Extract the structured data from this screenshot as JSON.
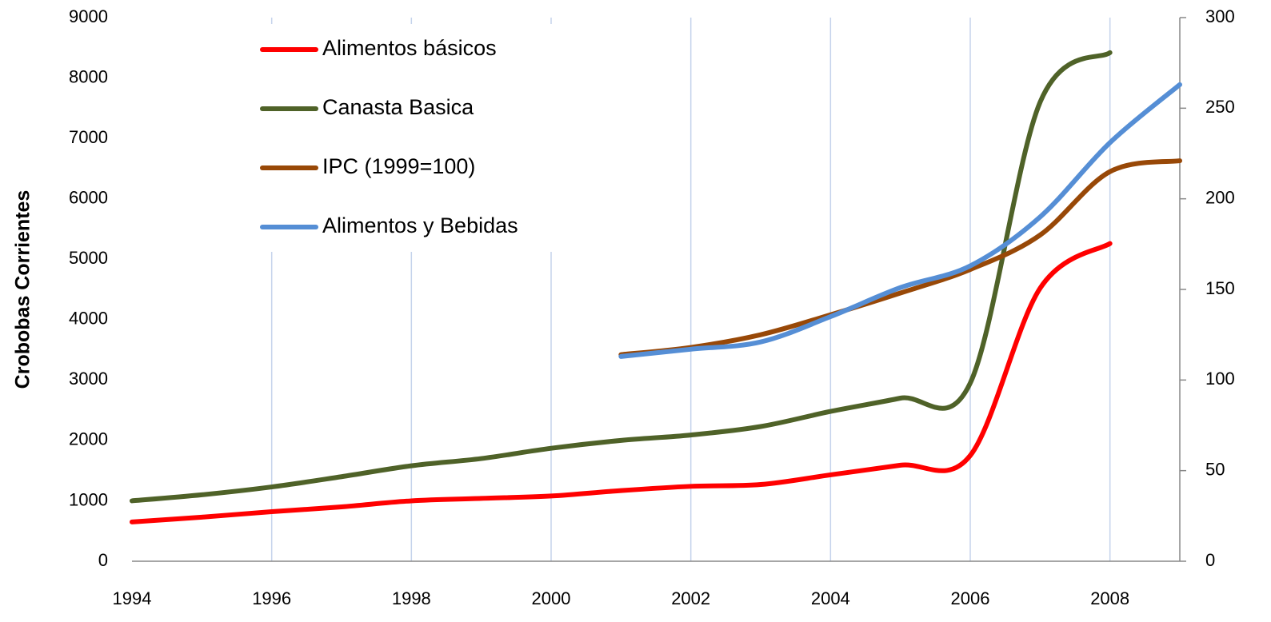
{
  "chart_data": {
    "type": "line",
    "y_label": "Crobobas Corrientes",
    "x": [
      1994,
      1995,
      1996,
      1997,
      1998,
      1999,
      2000,
      2001,
      2002,
      2003,
      2004,
      2005,
      2006,
      2007,
      2008,
      2009
    ],
    "xlim": [
      1994,
      2009
    ],
    "xticks": [
      1994,
      1996,
      1998,
      2000,
      2002,
      2004,
      2006,
      2008
    ],
    "ylim": [
      0,
      9000
    ],
    "yticks": [
      0,
      1000,
      2000,
      3000,
      4000,
      5000,
      6000,
      7000,
      8000,
      9000
    ],
    "y2lim": [
      0,
      300
    ],
    "y2ticks": [
      0,
      50,
      100,
      150,
      200,
      250,
      300
    ],
    "grid": true,
    "legend": "upper left",
    "series": [
      {
        "name": "Alimentos básicos",
        "color": "#ff0000",
        "values": [
          650,
          730,
          820,
          900,
          1000,
          1040,
          1080,
          1170,
          1240,
          1270,
          1430,
          1590,
          1750,
          4520,
          5260,
          null
        ]
      },
      {
        "name": "Canasta Basica",
        "color": "#4f6228",
        "values": [
          1000,
          1100,
          1230,
          1400,
          1580,
          1700,
          1870,
          2000,
          2090,
          2230,
          2480,
          2700,
          2950,
          7600,
          8420,
          null
        ]
      },
      {
        "name": "IPC (1999=100)",
        "color": "#984807",
        "axis": "y2",
        "values": [
          null,
          null,
          null,
          null,
          null,
          null,
          null,
          114,
          118,
          125,
          136,
          148,
          161,
          180,
          215,
          221
        ]
      },
      {
        "name": "Alimentos y Bebidas",
        "color": "#558ed5",
        "axis": "y2",
        "values": [
          null,
          null,
          null,
          null,
          null,
          null,
          null,
          113,
          117,
          121,
          135,
          151,
          163,
          190,
          231,
          263
        ]
      }
    ]
  }
}
